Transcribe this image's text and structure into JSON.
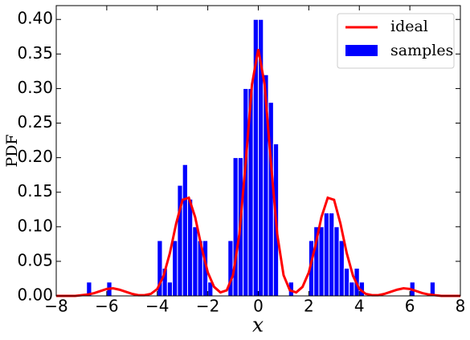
{
  "chart_data": {
    "type": "histogram",
    "xlabel": "x",
    "ylabel": "PDF",
    "legend": "upper right",
    "xlim": [
      -8,
      8
    ],
    "ylim": [
      0,
      0.42
    ],
    "xticks": [
      {
        "value": -8,
        "label": "−8"
      },
      {
        "value": -6,
        "label": "−6"
      },
      {
        "value": -4,
        "label": "−4"
      },
      {
        "value": -2,
        "label": "−2"
      },
      0,
      2,
      4,
      6,
      8
    ],
    "yticks": [
      {
        "value": 0,
        "label": "0.00"
      },
      {
        "value": 0.05,
        "label": "0.05"
      },
      {
        "value": 0.1,
        "label": "0.10"
      },
      {
        "value": 0.15,
        "label": "0.15"
      },
      {
        "value": 0.2,
        "label": "0.20"
      },
      {
        "value": 0.25,
        "label": "0.25"
      },
      {
        "value": 0.3,
        "label": "0.30"
      },
      {
        "value": 0.35,
        "label": "0.35"
      },
      {
        "value": 0.4,
        "label": "0.40"
      }
    ],
    "histogram": {
      "name": "samples",
      "color": "#0000ff",
      "bins": [
        -6.8,
        -6.6,
        -6.4,
        -6.2,
        -6,
        -5.8,
        -5.6,
        -5.4,
        -5.2,
        -5,
        -4.8,
        -4.6,
        -4.4,
        -4.2,
        -4,
        -3.8,
        -3.6,
        -3.4,
        -3.2,
        -3,
        -2.8,
        -2.6,
        -2.4,
        -2.2,
        -2,
        -1.8,
        -1.6,
        -1.4,
        -1.2,
        -1,
        -0.8,
        -0.6,
        -0.4,
        -0.2,
        0,
        0.2,
        0.4,
        0.6,
        0.8,
        1,
        1.2,
        1.4,
        1.6,
        1.8,
        2,
        2.2,
        2.4,
        2.6,
        2.8,
        3,
        3.2,
        3.4,
        3.6,
        3.8,
        4,
        4.2,
        4.4,
        4.6,
        4.8,
        5,
        5.2,
        5.4,
        5.6,
        5.8,
        6,
        6.2,
        6.4,
        6.6,
        6.8,
        7
      ],
      "values": [
        0.02,
        0,
        0,
        0,
        0.02,
        0,
        0,
        0,
        0,
        0,
        0,
        0,
        0,
        0,
        0.08,
        0.04,
        0.02,
        0.08,
        0.16,
        0.19,
        0.14,
        0.1,
        0.08,
        0.08,
        0.02,
        0,
        0,
        0,
        0.08,
        0.2,
        0.2,
        0.3,
        0.3,
        0.4,
        0.4,
        0.32,
        0.28,
        0.22,
        0,
        0,
        0.02,
        0,
        0,
        0,
        0.08,
        0.1,
        0.1,
        0.12,
        0.12,
        0.1,
        0.08,
        0.04,
        0.02,
        0.04,
        0.02,
        0,
        0,
        0,
        0,
        0,
        0,
        0,
        0,
        0,
        0.02,
        0,
        0,
        0,
        0.02
      ]
    },
    "line": {
      "name": "ideal",
      "color": "#ff0000",
      "x": [
        -8,
        -7.75,
        -7.5,
        -7.25,
        -7,
        -6.75,
        -6.5,
        -6.25,
        -6,
        -5.75,
        -5.5,
        -5.25,
        -5,
        -4.75,
        -4.5,
        -4.25,
        -4,
        -3.75,
        -3.5,
        -3.25,
        -3,
        -2.75,
        -2.5,
        -2.25,
        -2,
        -1.75,
        -1.5,
        -1.25,
        -1,
        -0.75,
        -0.5,
        -0.25,
        0,
        0.25,
        0.5,
        0.75,
        1,
        1.25,
        1.5,
        1.75,
        2,
        2.25,
        2.5,
        2.75,
        3,
        3.25,
        3.5,
        3.75,
        4,
        4.25,
        4.5,
        4.75,
        5,
        5.25,
        5.5,
        5.75,
        6,
        6.25,
        6.5,
        6.75,
        7,
        7.25,
        7.5,
        7.75,
        8
      ],
      "values": [
        0,
        0,
        0,
        0,
        0.001,
        0.002,
        0.004,
        0.007,
        0.01,
        0.011,
        0.009,
        0.006,
        0.003,
        0.001,
        0.001,
        0.003,
        0.01,
        0.029,
        0.062,
        0.105,
        0.139,
        0.142,
        0.114,
        0.071,
        0.034,
        0.013,
        0.005,
        0.008,
        0.03,
        0.089,
        0.193,
        0.306,
        0.357,
        0.306,
        0.193,
        0.089,
        0.03,
        0.008,
        0.005,
        0.013,
        0.034,
        0.071,
        0.114,
        0.142,
        0.139,
        0.105,
        0.062,
        0.029,
        0.01,
        0.003,
        0.001,
        0.001,
        0.003,
        0.006,
        0.009,
        0.011,
        0.01,
        0.007,
        0.004,
        0.002,
        0.001,
        0,
        0,
        0,
        0
      ]
    }
  }
}
